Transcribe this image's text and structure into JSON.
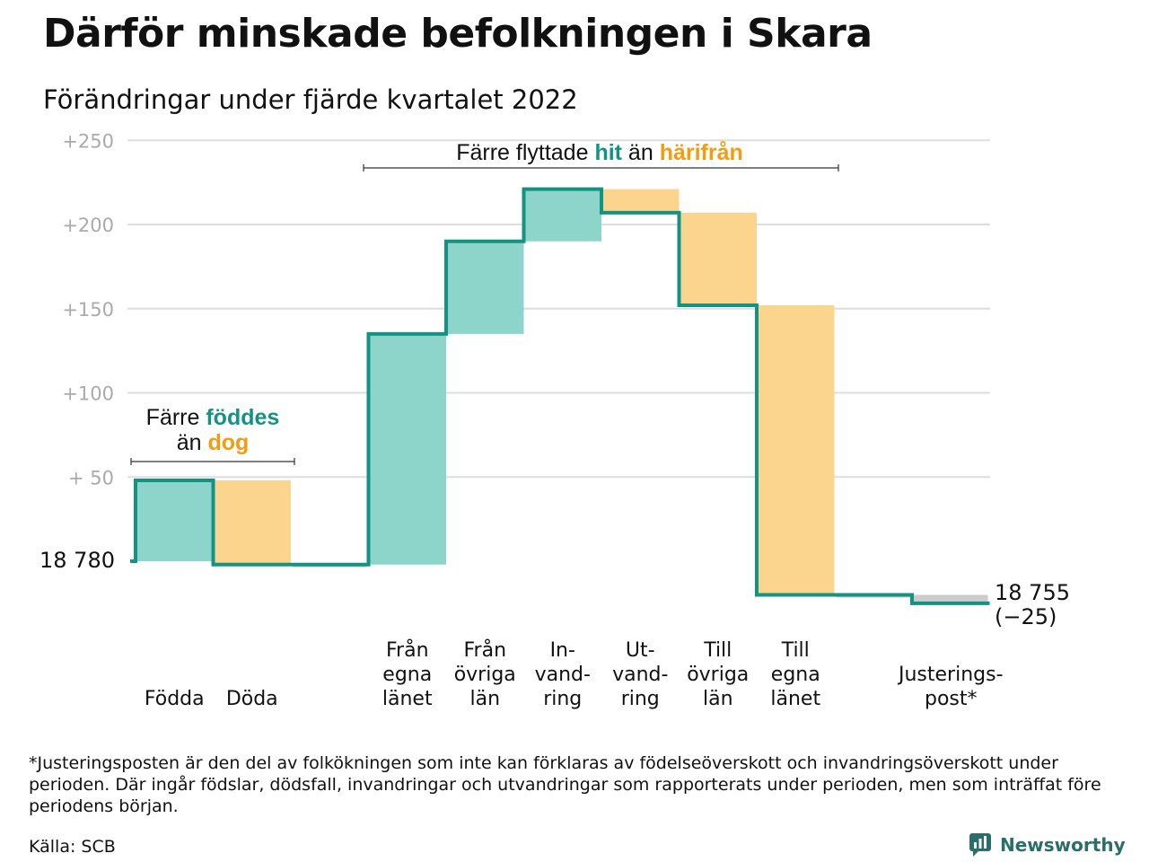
{
  "title": "Därför minskade befolkningen i Skara",
  "subtitle": "Förändringar under fjärde kvartalet 2022",
  "colors": {
    "increase": "#8dd5cb",
    "decrease": "#fbd58e",
    "adjustment": "#cccccc",
    "line": "#139384",
    "grid": "#dddddd",
    "hit": "#139384",
    "harifran": "#f39c12"
  },
  "chart_data": {
    "type": "waterfall",
    "start_label": "18 780",
    "start_value": 18780,
    "end_label": "18 755",
    "end_change_label": "(−25)",
    "end_value": 18755,
    "y_axis": {
      "ticks": [
        {
          "value": 250,
          "label": "+250"
        },
        {
          "value": 200,
          "label": "+200"
        },
        {
          "value": 150,
          "label": "+150"
        },
        {
          "value": 100,
          "label": "+100"
        },
        {
          "value": 50,
          "label": "+ 50"
        }
      ],
      "range": [
        -25,
        250
      ]
    },
    "steps": [
      {
        "label": [
          "Födda"
        ],
        "value": 48,
        "kind": "increase"
      },
      {
        "label": [
          "Döda"
        ],
        "value": -50,
        "kind": "decrease"
      },
      {
        "label": [],
        "value": 0,
        "kind": "adjustment"
      },
      {
        "label": [
          "Från",
          "egna",
          "länet"
        ],
        "value": 137,
        "kind": "increase"
      },
      {
        "label": [
          "Från",
          "övriga",
          "län"
        ],
        "value": 55,
        "kind": "increase"
      },
      {
        "label": [
          "In-",
          "vand-",
          "ring"
        ],
        "value": 31,
        "kind": "increase"
      },
      {
        "label": [
          "Ut-",
          "vand-",
          "ring"
        ],
        "value": -14,
        "kind": "decrease"
      },
      {
        "label": [
          "Till",
          "övriga",
          "län"
        ],
        "value": -55,
        "kind": "decrease"
      },
      {
        "label": [
          "Till",
          "egna",
          "länet"
        ],
        "value": -172,
        "kind": "decrease"
      },
      {
        "label": [],
        "value": 0,
        "kind": "adjustment"
      },
      {
        "label": [
          "Justerings-",
          "post*"
        ],
        "value": -5,
        "kind": "adjustment"
      }
    ],
    "annotations": [
      {
        "parts": [
          {
            "text": "Färre ",
            "style": "plain"
          },
          {
            "text": "föddes",
            "style": "teal"
          }
        ],
        "parts2": [
          {
            "text": "än ",
            "style": "plain"
          },
          {
            "text": "dog",
            "style": "orange"
          }
        ],
        "from_step": 0,
        "to_step": 1
      },
      {
        "parts": [
          {
            "text": "Färre flyttade ",
            "style": "plain"
          },
          {
            "text": "hit",
            "style": "teal"
          },
          {
            "text": " än ",
            "style": "plain"
          },
          {
            "text": "härifrån",
            "style": "orange"
          }
        ],
        "from_step": 3,
        "to_step": 8
      }
    ]
  },
  "footnote": "*Justeringsposten är den del av folkökningen som inte kan förklaras av födelseöverskott och invandringsöverskott under perioden. Där ingår födslar, dödsfall, invandringar och utvandringar som rapporterats under perioden, men som inträffat före periodens början.",
  "source": "Källa: SCB",
  "brand": "Newsworthy",
  "brand_icon": "newsworthy-logo-icon"
}
